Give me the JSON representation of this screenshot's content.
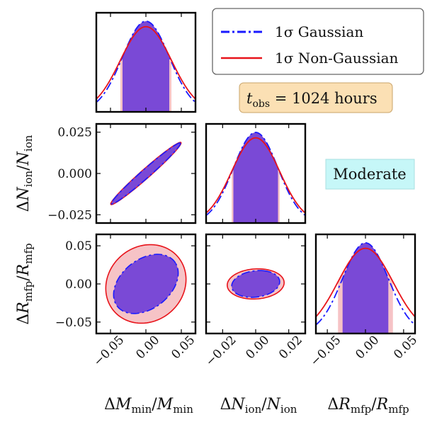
{
  "chart_data": {
    "type": "corner",
    "parameters": [
      {
        "label_main": "ΔM",
        "label_sub": "min",
        "label_den": "M",
        "label_den_sub": "min",
        "ticks": [
          -0.05,
          0.0,
          0.05
        ],
        "tick_labels": [
          "−0.05",
          "0.00",
          "0.05"
        ],
        "range": [
          -0.07,
          0.07
        ]
      },
      {
        "label_main": "ΔN",
        "label_sub": "ion",
        "label_den": "N",
        "label_den_sub": "ion",
        "ticks": [
          -0.025,
          0.0,
          0.025
        ],
        "tick_labels": [
          "−0.025",
          "0.000",
          "0.025"
        ],
        "x_ticks": [
          -0.02,
          0.0,
          0.02
        ],
        "x_tick_labels": [
          "−0.02",
          "0.00",
          "0.02"
        ],
        "range": [
          -0.03,
          0.03
        ]
      },
      {
        "label_main": "ΔR",
        "label_sub": "mfp",
        "label_den": "R",
        "label_den_sub": "mfp",
        "ticks": [
          -0.05,
          0.0,
          0.05
        ],
        "tick_labels": [
          "−0.05",
          "0.00",
          "0.05"
        ],
        "range": [
          -0.065,
          0.065
        ]
      }
    ],
    "series": [
      {
        "name": "1σ Gaussian",
        "color": "#1a1aff",
        "fill": "#7a49d6",
        "linestyle": "dashdot",
        "sigmas": [
          0.033,
          0.0135,
          0.03
        ],
        "ellipses": {
          "1-0": {
            "a": 0.052,
            "b": 0.0032,
            "angle_deg": 20.5
          },
          "2-0": {
            "a": 0.05,
            "b": 0.033,
            "angle_deg": 33
          },
          "2-1": {
            "a": 0.018,
            "b": 0.014,
            "angle_deg": 70
          }
        }
      },
      {
        "name": "1σ Non-Gaussian",
        "color": "#e8141b",
        "fill": "#f6c3c6",
        "linestyle": "solid",
        "sigmas": [
          0.036,
          0.0145,
          0.036
        ],
        "ellipses": {
          "1-0": {
            "a": 0.053,
            "b": 0.0034,
            "angle_deg": 20.5
          },
          "2-0": {
            "a": 0.058,
            "b": 0.05,
            "angle_deg": 25
          },
          "2-1": {
            "a": 0.02,
            "b": 0.017,
            "angle_deg": 75
          }
        }
      }
    ],
    "legend": {
      "position": "top-right"
    },
    "annotations": [
      {
        "id": "tobs",
        "text_main": "t",
        "text_sub": "obs",
        "text_rest": " = 1024 hours",
        "bg": "#fbe0b4"
      },
      {
        "id": "scenario",
        "text": "Moderate",
        "bg": "#c6f7f8"
      }
    ],
    "grid": false
  }
}
